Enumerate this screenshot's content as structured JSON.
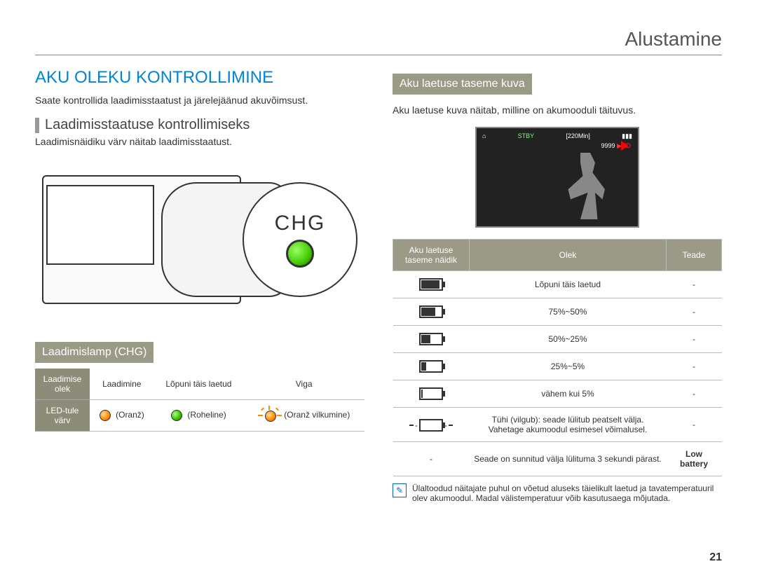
{
  "header": {
    "chapter": "Alustamine"
  },
  "left": {
    "title": "AKU OLEKU KONTROLLIMINE",
    "lead": "Saate kontrollida laadimisstaatust ja järelejäänud akuvõimsust.",
    "sub_h": "Laadimisstaatuse kontrollimiseks",
    "sub_text": "Laadimisnäidiku värv näitab laadimisstaatust.",
    "chg_label": "CHG",
    "band": "Laadimislamp (CHG)",
    "table": {
      "row1_label": "Laadimise olek",
      "row2_label": "LED-tule värv",
      "cols": [
        "Laadimine",
        "Lõpuni täis laetud",
        "Viga"
      ],
      "led": [
        "(Oranž)",
        "(Roheline)",
        "(Oranž vilkumine)"
      ]
    }
  },
  "right": {
    "band": "Aku laetuse taseme kuva",
    "lead": "Aku laetuse kuva näitab, milline on akumooduli täituvus.",
    "lcd": {
      "stby": "STBY",
      "time": "[220Min]",
      "count": "9999"
    },
    "table": {
      "headers": [
        "Aku laetuse taseme näidik",
        "Olek",
        "Teade"
      ],
      "rows": [
        {
          "fill": 100,
          "status": "Lõpuni täis laetud",
          "msg": "-"
        },
        {
          "fill": 75,
          "status": "75%~50%",
          "msg": "-"
        },
        {
          "fill": 50,
          "status": "50%~25%",
          "msg": "-"
        },
        {
          "fill": 25,
          "status": "25%~5%",
          "msg": "-"
        },
        {
          "fill": 8,
          "status": "vähem kui 5%",
          "msg": "-"
        },
        {
          "fill": 0,
          "blinking": true,
          "status": "Tühi (vilgub): seade lülitub peatselt välja. Vahetage akumoodul esimesel võimalusel.",
          "msg": "-"
        },
        {
          "no_icon": true,
          "status": "Seade on sunnitud välja lülituma 3 sekundi pärast.",
          "msg": "Low battery",
          "msg_bold": true
        }
      ]
    },
    "note": "Ülaltoodud näitajate puhul on võetud aluseks täielikult laetud ja tavatemperatuuril olev akumoodul. Madal välistemperatuur võib kasutusaega mõjutada."
  },
  "page_number": "21"
}
